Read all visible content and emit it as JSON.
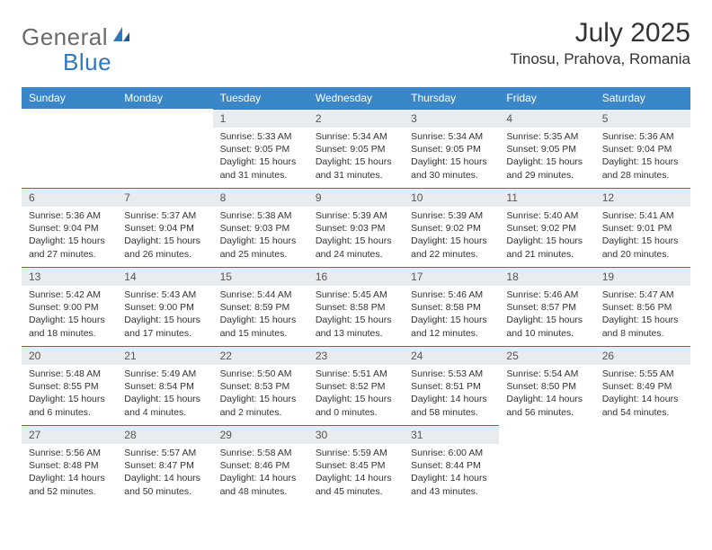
{
  "logo": {
    "part1": "General",
    "part2": "Blue"
  },
  "title": "July 2025",
  "location": "Tinosu, Prahova, Romania",
  "colors": {
    "header_bg": "#3a87c8",
    "header_text": "#ffffff",
    "daynum_bg": "#e9ecef",
    "daynum_border_top": "#2f78bd",
    "body_text": "#333333",
    "logo_gray": "#6b6b6b",
    "logo_blue": "#2f78bd",
    "page_bg": "#ffffff"
  },
  "weekdays": [
    "Sunday",
    "Monday",
    "Tuesday",
    "Wednesday",
    "Thursday",
    "Friday",
    "Saturday"
  ],
  "weeks": [
    [
      null,
      null,
      {
        "n": "1",
        "sr": "5:33 AM",
        "ss": "9:05 PM",
        "dl": "15 hours and 31 minutes."
      },
      {
        "n": "2",
        "sr": "5:34 AM",
        "ss": "9:05 PM",
        "dl": "15 hours and 31 minutes."
      },
      {
        "n": "3",
        "sr": "5:34 AM",
        "ss": "9:05 PM",
        "dl": "15 hours and 30 minutes."
      },
      {
        "n": "4",
        "sr": "5:35 AM",
        "ss": "9:05 PM",
        "dl": "15 hours and 29 minutes."
      },
      {
        "n": "5",
        "sr": "5:36 AM",
        "ss": "9:04 PM",
        "dl": "15 hours and 28 minutes."
      }
    ],
    [
      {
        "n": "6",
        "sr": "5:36 AM",
        "ss": "9:04 PM",
        "dl": "15 hours and 27 minutes."
      },
      {
        "n": "7",
        "sr": "5:37 AM",
        "ss": "9:04 PM",
        "dl": "15 hours and 26 minutes."
      },
      {
        "n": "8",
        "sr": "5:38 AM",
        "ss": "9:03 PM",
        "dl": "15 hours and 25 minutes."
      },
      {
        "n": "9",
        "sr": "5:39 AM",
        "ss": "9:03 PM",
        "dl": "15 hours and 24 minutes."
      },
      {
        "n": "10",
        "sr": "5:39 AM",
        "ss": "9:02 PM",
        "dl": "15 hours and 22 minutes."
      },
      {
        "n": "11",
        "sr": "5:40 AM",
        "ss": "9:02 PM",
        "dl": "15 hours and 21 minutes."
      },
      {
        "n": "12",
        "sr": "5:41 AM",
        "ss": "9:01 PM",
        "dl": "15 hours and 20 minutes."
      }
    ],
    [
      {
        "n": "13",
        "sr": "5:42 AM",
        "ss": "9:00 PM",
        "dl": "15 hours and 18 minutes."
      },
      {
        "n": "14",
        "sr": "5:43 AM",
        "ss": "9:00 PM",
        "dl": "15 hours and 17 minutes."
      },
      {
        "n": "15",
        "sr": "5:44 AM",
        "ss": "8:59 PM",
        "dl": "15 hours and 15 minutes."
      },
      {
        "n": "16",
        "sr": "5:45 AM",
        "ss": "8:58 PM",
        "dl": "15 hours and 13 minutes."
      },
      {
        "n": "17",
        "sr": "5:46 AM",
        "ss": "8:58 PM",
        "dl": "15 hours and 12 minutes."
      },
      {
        "n": "18",
        "sr": "5:46 AM",
        "ss": "8:57 PM",
        "dl": "15 hours and 10 minutes."
      },
      {
        "n": "19",
        "sr": "5:47 AM",
        "ss": "8:56 PM",
        "dl": "15 hours and 8 minutes."
      }
    ],
    [
      {
        "n": "20",
        "sr": "5:48 AM",
        "ss": "8:55 PM",
        "dl": "15 hours and 6 minutes."
      },
      {
        "n": "21",
        "sr": "5:49 AM",
        "ss": "8:54 PM",
        "dl": "15 hours and 4 minutes."
      },
      {
        "n": "22",
        "sr": "5:50 AM",
        "ss": "8:53 PM",
        "dl": "15 hours and 2 minutes."
      },
      {
        "n": "23",
        "sr": "5:51 AM",
        "ss": "8:52 PM",
        "dl": "15 hours and 0 minutes."
      },
      {
        "n": "24",
        "sr": "5:53 AM",
        "ss": "8:51 PM",
        "dl": "14 hours and 58 minutes."
      },
      {
        "n": "25",
        "sr": "5:54 AM",
        "ss": "8:50 PM",
        "dl": "14 hours and 56 minutes."
      },
      {
        "n": "26",
        "sr": "5:55 AM",
        "ss": "8:49 PM",
        "dl": "14 hours and 54 minutes."
      }
    ],
    [
      {
        "n": "27",
        "sr": "5:56 AM",
        "ss": "8:48 PM",
        "dl": "14 hours and 52 minutes."
      },
      {
        "n": "28",
        "sr": "5:57 AM",
        "ss": "8:47 PM",
        "dl": "14 hours and 50 minutes."
      },
      {
        "n": "29",
        "sr": "5:58 AM",
        "ss": "8:46 PM",
        "dl": "14 hours and 48 minutes."
      },
      {
        "n": "30",
        "sr": "5:59 AM",
        "ss": "8:45 PM",
        "dl": "14 hours and 45 minutes."
      },
      {
        "n": "31",
        "sr": "6:00 AM",
        "ss": "8:44 PM",
        "dl": "14 hours and 43 minutes."
      },
      null,
      null
    ]
  ],
  "labels": {
    "sunrise": "Sunrise: ",
    "sunset": "Sunset: ",
    "daylight": "Daylight: "
  }
}
